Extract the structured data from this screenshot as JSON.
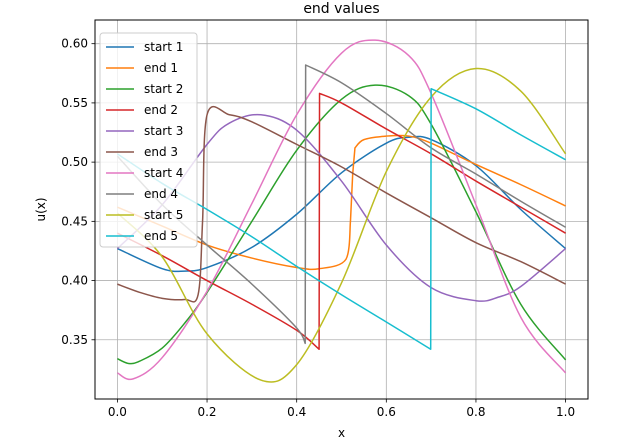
{
  "chart_data": {
    "type": "line",
    "title": "end values",
    "xlabel": "x",
    "ylabel": "u(x)",
    "xlim": [
      -0.05,
      1.05
    ],
    "ylim": [
      0.3,
      0.62
    ],
    "grid": true,
    "legend_position": "top-left",
    "x_ticks": [
      "0.0",
      "0.2",
      "0.4",
      "0.6",
      "0.8",
      "1.0"
    ],
    "y_ticks": [
      "0.35",
      "0.40",
      "0.45",
      "0.50",
      "0.55",
      "0.60"
    ],
    "series": [
      {
        "name": "start 1",
        "color": "#1f77b4",
        "x": [
          0,
          0.1,
          0.15,
          0.2,
          0.3,
          0.4,
          0.5,
          0.6,
          0.65,
          0.7,
          0.8,
          0.9,
          1.0
        ],
        "y": [
          0.427,
          0.41,
          0.408,
          0.411,
          0.428,
          0.456,
          0.491,
          0.516,
          0.521,
          0.519,
          0.497,
          0.46,
          0.427
        ]
      },
      {
        "name": "end 1",
        "color": "#ff7f0e",
        "x": [
          0,
          0.1,
          0.2,
          0.3,
          0.4,
          0.45,
          0.51,
          0.52,
          0.525,
          0.53,
          0.55,
          0.6,
          0.65,
          0.7,
          0.8,
          0.9,
          1.0
        ],
        "y": [
          0.462,
          0.446,
          0.43,
          0.419,
          0.411,
          0.41,
          0.418,
          0.45,
          0.49,
          0.512,
          0.519,
          0.522,
          0.522,
          0.516,
          0.498,
          0.481,
          0.463
        ]
      },
      {
        "name": "start 2",
        "color": "#2ca02c",
        "x": [
          0,
          0.025,
          0.05,
          0.1,
          0.15,
          0.2,
          0.3,
          0.4,
          0.5,
          0.575,
          0.65,
          0.7,
          0.8,
          0.9,
          1.0
        ],
        "y": [
          0.334,
          0.33,
          0.332,
          0.343,
          0.364,
          0.39,
          0.45,
          0.51,
          0.553,
          0.565,
          0.556,
          0.532,
          0.458,
          0.38,
          0.333
        ]
      },
      {
        "name": "end 2",
        "color": "#d62728",
        "x": [
          0,
          0.1,
          0.2,
          0.3,
          0.4,
          0.45,
          0.451,
          0.5,
          0.6,
          0.7,
          0.8,
          0.9,
          1.0
        ],
        "y": [
          0.44,
          0.421,
          0.4,
          0.38,
          0.358,
          0.342,
          0.558,
          0.55,
          0.528,
          0.507,
          0.484,
          0.462,
          0.44
        ]
      },
      {
        "name": "start 3",
        "color": "#9467bd",
        "x": [
          0,
          0.1,
          0.2,
          0.25,
          0.32,
          0.4,
          0.5,
          0.6,
          0.7,
          0.8,
          0.85,
          0.9,
          1.0
        ],
        "y": [
          0.427,
          0.464,
          0.515,
          0.533,
          0.54,
          0.527,
          0.484,
          0.43,
          0.394,
          0.383,
          0.386,
          0.395,
          0.427
        ]
      },
      {
        "name": "end 3",
        "color": "#8c564b",
        "x": [
          0,
          0.05,
          0.1,
          0.15,
          0.18,
          0.19,
          0.2,
          0.25,
          0.3,
          0.4,
          0.5,
          0.6,
          0.7,
          0.8,
          0.9,
          1.0
        ],
        "y": [
          0.397,
          0.39,
          0.385,
          0.384,
          0.388,
          0.45,
          0.54,
          0.54,
          0.534,
          0.515,
          0.496,
          0.474,
          0.453,
          0.432,
          0.416,
          0.397
        ]
      },
      {
        "name": "start 4",
        "color": "#e377c2",
        "x": [
          0,
          0.035,
          0.1,
          0.2,
          0.3,
          0.4,
          0.5,
          0.575,
          0.65,
          0.7,
          0.8,
          0.9,
          1.0
        ],
        "y": [
          0.322,
          0.317,
          0.335,
          0.391,
          0.465,
          0.54,
          0.592,
          0.603,
          0.59,
          0.558,
          0.464,
          0.369,
          0.322
        ]
      },
      {
        "name": "end 4",
        "color": "#7f7f7f",
        "x": [
          0,
          0.1,
          0.2,
          0.3,
          0.4,
          0.419,
          0.42,
          0.5,
          0.6,
          0.7,
          0.8,
          0.9,
          1.0
        ],
        "y": [
          0.505,
          0.464,
          0.43,
          0.397,
          0.36,
          0.347,
          0.582,
          0.567,
          0.541,
          0.512,
          0.49,
          0.467,
          0.445
        ]
      },
      {
        "name": "start 5",
        "color": "#bcbd22",
        "x": [
          0,
          0.1,
          0.2,
          0.32,
          0.4,
          0.5,
          0.6,
          0.7,
          0.8,
          0.9,
          1.0
        ],
        "y": [
          0.457,
          0.42,
          0.355,
          0.316,
          0.329,
          0.398,
          0.492,
          0.555,
          0.579,
          0.56,
          0.507
        ]
      },
      {
        "name": "end 5",
        "color": "#17becf",
        "x": [
          0,
          0.1,
          0.2,
          0.3,
          0.4,
          0.5,
          0.6,
          0.699,
          0.7,
          0.8,
          0.9,
          1.0
        ],
        "y": [
          0.507,
          0.482,
          0.46,
          0.437,
          0.412,
          0.388,
          0.365,
          0.342,
          0.562,
          0.545,
          0.523,
          0.502
        ]
      }
    ]
  }
}
